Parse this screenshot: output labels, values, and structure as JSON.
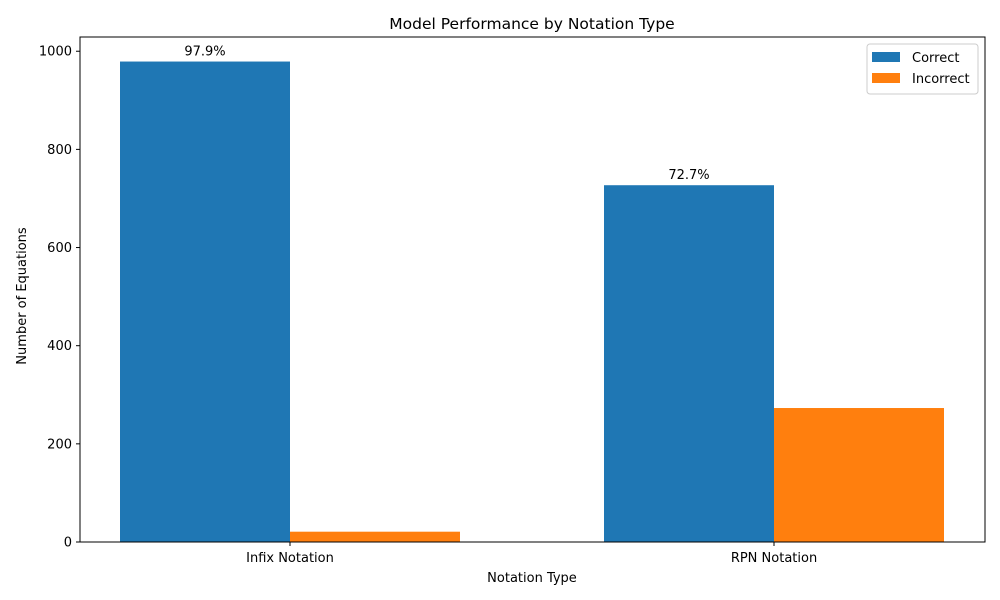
{
  "chart_data": {
    "type": "bar",
    "title": "Model Performance by Notation Type",
    "xlabel": "Notation Type",
    "ylabel": "Number of Equations",
    "categories": [
      "Infix Notation",
      "RPN Notation"
    ],
    "series": [
      {
        "name": "Correct",
        "color": "#1f77b4",
        "values": [
          979,
          727
        ],
        "labels": [
          "97.9%",
          "72.7%"
        ]
      },
      {
        "name": "Incorrect",
        "color": "#ff7f0e",
        "values": [
          21,
          273
        ],
        "labels": [
          "",
          ""
        ]
      }
    ],
    "ylim": [
      0,
      1029
    ],
    "yticks": [
      0,
      200,
      400,
      600,
      800,
      1000
    ],
    "legend_position": "top-right",
    "grid": false
  }
}
